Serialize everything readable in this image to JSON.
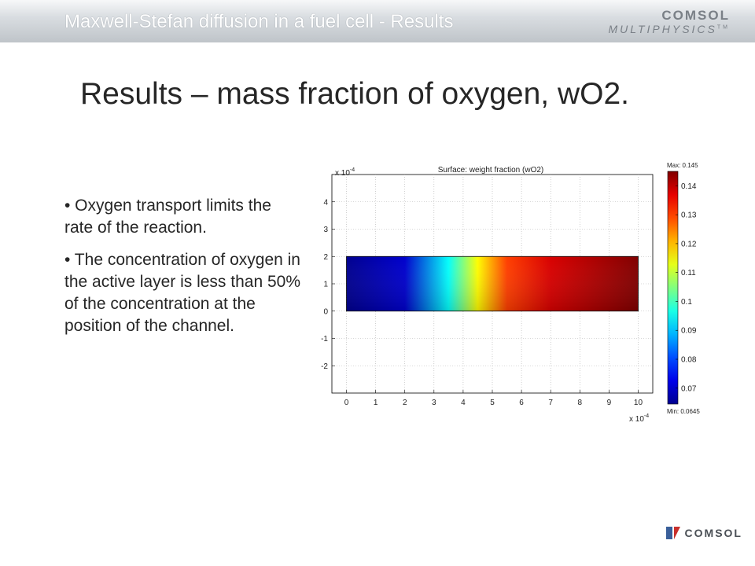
{
  "header": {
    "title": "Maxwell-Stefan diffusion in a fuel cell - Results",
    "logo_line1": "COMSOL",
    "logo_line2": "MULTIPHYSICS",
    "logo_tm": "TM"
  },
  "slide": {
    "title": "Results – mass fraction of oxygen, wO2."
  },
  "bullets": [
    "• Oxygen transport limits the rate of the reaction.",
    "• The concentration of oxygen in the active layer is less than 50% of the concentration at the position of the channel."
  ],
  "footer": {
    "logo_text": "COMSOL"
  },
  "chart_data": {
    "type": "heatmap",
    "title": "Surface: weight fraction (wO2)",
    "x_exponent": "x 10",
    "y_exponent": "x 10",
    "exponent_power": "-4",
    "xlim": [
      -0.5,
      10.5
    ],
    "ylim": [
      -3,
      5
    ],
    "x_ticks": [
      0,
      1,
      2,
      3,
      4,
      5,
      6,
      7,
      8,
      9,
      10
    ],
    "y_ticks": [
      -2,
      -1,
      0,
      1,
      2,
      3,
      4
    ],
    "grid": true,
    "domain": {
      "x": [
        0,
        10
      ],
      "y": [
        0,
        2
      ]
    },
    "color_field": {
      "description_min_location": "bottom-left",
      "gradient_x": [
        0,
        2,
        3.5,
        4.5,
        5.5,
        7,
        10
      ],
      "gradient_values": [
        0.0645,
        0.07,
        0.095,
        0.115,
        0.13,
        0.138,
        0.145
      ]
    },
    "colorbar": {
      "max_label": "Max: 0.145",
      "min_label": "Min: 0.0645",
      "min": 0.0645,
      "max": 0.145,
      "ticks": [
        0.07,
        0.08,
        0.09,
        0.1,
        0.11,
        0.12,
        0.13,
        0.14
      ],
      "tick_labels": [
        "0.07",
        "0.08",
        "0.09",
        "0.1",
        "0.11",
        "0.12",
        "0.13",
        "0.14"
      ],
      "colormap": "jet"
    },
    "colors": {
      "jet": [
        "#00008f",
        "#0000ff",
        "#00ffff",
        "#ffff00",
        "#ff0000",
        "#800000"
      ]
    }
  }
}
